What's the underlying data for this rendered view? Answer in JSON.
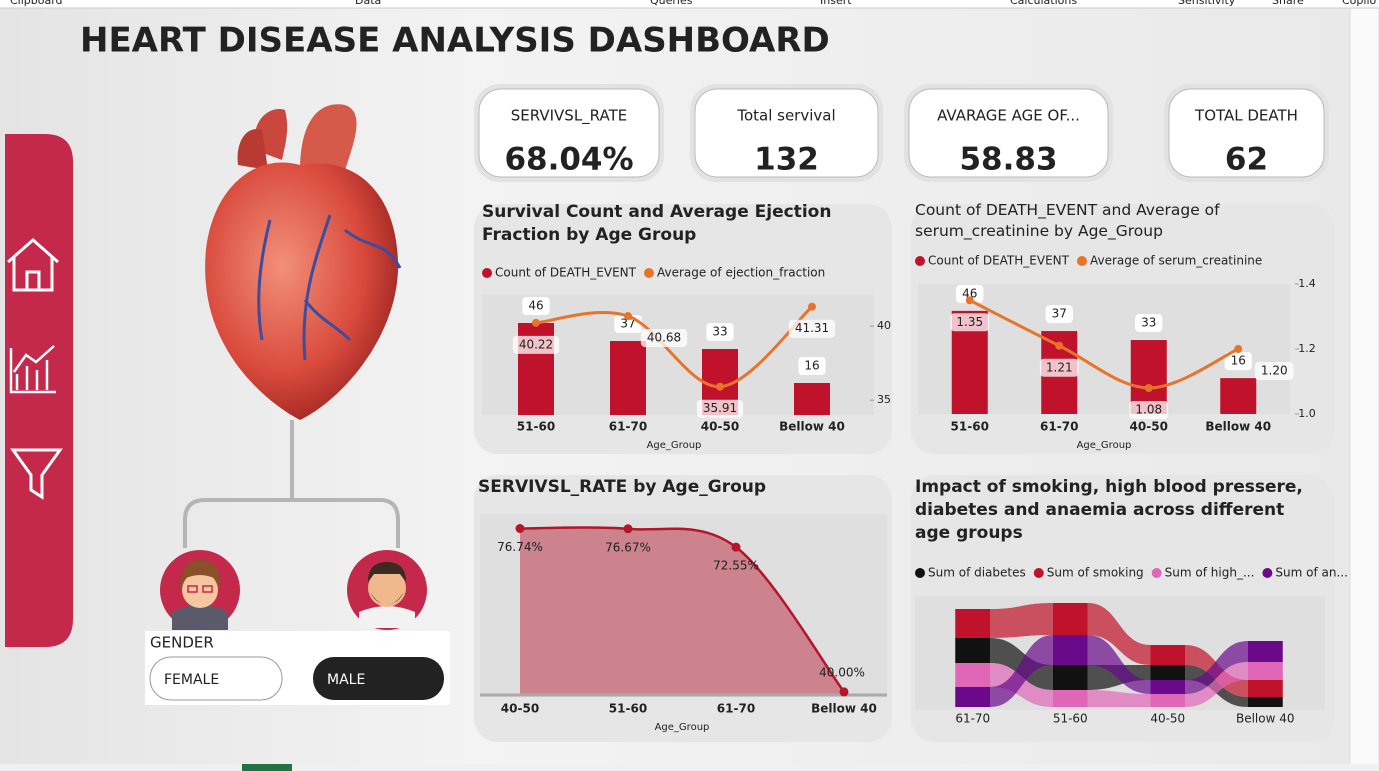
{
  "ribbon": [
    "Clipboard",
    "Data",
    "Queries",
    "Insert",
    "Calculations",
    "Sensitivity",
    "Share",
    "Copilo"
  ],
  "title": "HEART DISEASE ANALYSIS DASHBOARD",
  "kpis": [
    {
      "label": "SERVIVSL_RATE",
      "value": "68.04%"
    },
    {
      "label": "Total servival",
      "value": "132"
    },
    {
      "label": "AVARAGE AGE OF...",
      "value": "58.83"
    },
    {
      "label": "TOTAL DEATH",
      "value": "62"
    }
  ],
  "gender_slicer": {
    "title": "GENDER",
    "options": [
      "FEMALE",
      "MALE"
    ]
  },
  "chart_data": [
    {
      "type": "combo",
      "title": "Survival Count and Average Ejection Fraction by Age Group",
      "x_label": "Age_Group",
      "categories": [
        "51-60",
        "61-70",
        "40-50",
        "Bellow 40"
      ],
      "series": [
        {
          "name": "Count of DEATH_EVENT",
          "color": "#c0122a",
          "values": [
            46,
            37,
            33,
            16
          ]
        },
        {
          "name": "Average of ejection_fraction",
          "color": "#e8732a",
          "values": [
            40.22,
            40.68,
            35.91,
            41.31
          ],
          "axis": "y2"
        }
      ],
      "ylim": [
        0,
        60
      ],
      "y2lim": [
        34,
        42.1
      ],
      "y2ticks": [
        35,
        40
      ]
    },
    {
      "type": "combo",
      "title": "Count of DEATH_EVENT and Average of serum_creatinine by Age_Group",
      "x_label": "Age_Group",
      "categories": [
        "51-60",
        "61-70",
        "40-50",
        "Bellow 40"
      ],
      "series": [
        {
          "name": "Count of DEATH_EVENT",
          "color": "#c0122a",
          "values": [
            46,
            37,
            33,
            16
          ]
        },
        {
          "name": "Average of serum_creatinine",
          "color": "#e8732a",
          "values": [
            1.35,
            1.21,
            1.08,
            1.2
          ],
          "value_labels": [
            "1.35",
            "1.21",
            "1.08",
            "1.20"
          ],
          "axis": "y2"
        }
      ],
      "ylim": [
        0,
        58
      ],
      "y2lim": [
        1.0,
        1.4
      ],
      "y2ticks": [
        {
          "value": 1,
          "label": "1.0"
        },
        {
          "value": 1.2,
          "label": "1.2"
        },
        {
          "value": 1.4,
          "label": "1.4"
        }
      ]
    },
    {
      "type": "area",
      "title": "SERVIVSL_RATE by Age_Group",
      "x_label": "Age_Group",
      "categories": [
        "40-50",
        "51-60",
        "61-70",
        "Bellow 40"
      ],
      "values": [
        76.74,
        76.67,
        72.55,
        40
      ],
      "value_labels": [
        "76.74%",
        "76.67%",
        "72.55%",
        "40.00%"
      ],
      "color": "#b5142a",
      "ylim": [
        39.3,
        80
      ]
    },
    {
      "type": "ribbon",
      "title": "Impact of smoking, high blood pressere, diabetes and anaemia across different age groups",
      "categories": [
        "61-70",
        "51-60",
        "40-50",
        "Bellow 40"
      ],
      "series": [
        {
          "name": "Sum of diabetes",
          "color": "#111111",
          "values": [
            25,
            25,
            15,
            10
          ]
        },
        {
          "name": "Sum of smoking",
          "color": "#c0122a",
          "values": [
            29,
            32,
            20,
            17
          ]
        },
        {
          "name": "Sum of high_...",
          "color": "#e066b8",
          "values": [
            24,
            17,
            13,
            18
          ]
        },
        {
          "name": "Sum of an...",
          "color": "#6a0a8a",
          "values": [
            20,
            30,
            14,
            21
          ]
        }
      ],
      "ylim": [
        0,
        110
      ]
    }
  ]
}
